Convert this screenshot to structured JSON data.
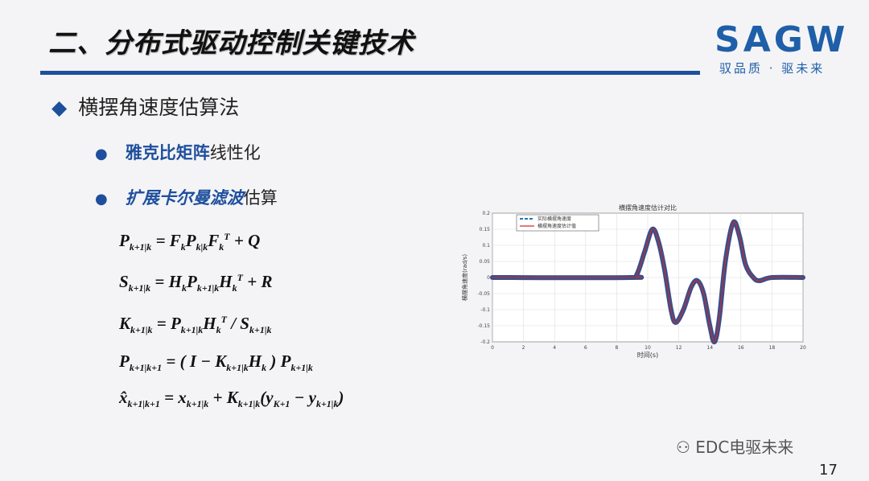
{
  "header": {
    "title": "二、分布式驱动控制关键技术",
    "logo": "SAGW",
    "slogan": "驭品质 · 驱未来"
  },
  "section": {
    "heading": "横摆角速度估算法"
  },
  "bullets": [
    {
      "bold": "雅克比矩阵",
      "rest": "线性化"
    },
    {
      "bold": "扩展卡尔曼滤波",
      "rest": "估算"
    }
  ],
  "watermark": "EDC电驱未来",
  "page_number": "17",
  "chart_data": {
    "type": "line",
    "title": "横摆角速度估计对比",
    "xlabel": "时间(s)",
    "ylabel": "横摆角速度(rad/s)",
    "xlim": [
      0,
      20
    ],
    "ylim": [
      -0.2,
      0.2
    ],
    "xticks": [
      "0",
      "2",
      "4",
      "6",
      "8",
      "10",
      "12",
      "14",
      "16",
      "18",
      "20"
    ],
    "yticks": [
      "-0.2",
      "-0.15",
      "-0.1",
      "-0.05",
      "0",
      "0.05",
      "0.1",
      "0.15",
      "0.2"
    ],
    "grid": true,
    "legend": "top-left",
    "x": [
      0,
      8.8,
      9.3,
      9.8,
      10.3,
      10.7,
      11.1,
      11.5,
      11.8,
      12.3,
      12.8,
      13.2,
      13.6,
      14.0,
      14.3,
      14.6,
      15.0,
      15.5,
      15.9,
      16.3,
      16.8,
      17.2,
      18,
      20
    ],
    "series": [
      {
        "name": "实际横摆角速度",
        "color": "#1f77b4",
        "values": [
          0,
          0,
          0.01,
          0.08,
          0.15,
          0.11,
          0.02,
          -0.1,
          -0.14,
          -0.1,
          -0.03,
          -0.01,
          -0.05,
          -0.15,
          -0.2,
          -0.13,
          0.05,
          0.17,
          0.13,
          0.04,
          0.0,
          -0.01,
          0,
          0
        ]
      },
      {
        "name": "横摆角速度估计值",
        "color": "#d62728",
        "values": [
          0,
          0,
          0.01,
          0.08,
          0.15,
          0.11,
          0.02,
          -0.1,
          -0.14,
          -0.1,
          -0.03,
          -0.01,
          -0.05,
          -0.15,
          -0.2,
          -0.13,
          0.05,
          0.17,
          0.13,
          0.04,
          0.0,
          -0.01,
          0,
          0
        ]
      }
    ]
  }
}
